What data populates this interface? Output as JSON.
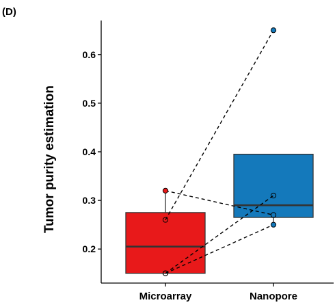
{
  "panel_label": "(D)",
  "chart_data": {
    "type": "box",
    "title": "",
    "xlabel": "",
    "ylabel": "Tumor purity estimation",
    "categories": [
      "Microarray",
      "Nanopore"
    ],
    "ylim": [
      0.13,
      0.67
    ],
    "yticks": [
      0.2,
      0.3,
      0.4,
      0.5,
      0.6
    ],
    "grid": false,
    "legend": "none",
    "boxes": [
      {
        "name": "Microarray",
        "q1": 0.15,
        "median": 0.205,
        "q3": 0.275,
        "whisker_low": 0.15,
        "whisker_high": 0.32,
        "color": "#e8191a"
      },
      {
        "name": "Nanopore",
        "q1": 0.265,
        "median": 0.29,
        "q3": 0.395,
        "whisker_low": 0.25,
        "whisker_high": 0.395,
        "color": "#1479bb"
      }
    ],
    "samples": [
      {
        "Microarray": 0.32,
        "Nanopore": 0.27
      },
      {
        "Microarray": 0.26,
        "Nanopore": 0.65
      },
      {
        "Microarray": 0.15,
        "Nanopore": 0.31
      },
      {
        "Microarray": 0.15,
        "Nanopore": 0.25
      }
    ],
    "hollow_points": {
      "Microarray": [
        0.26,
        0.15
      ],
      "Nanopore": [
        0.31,
        0.27
      ]
    }
  }
}
